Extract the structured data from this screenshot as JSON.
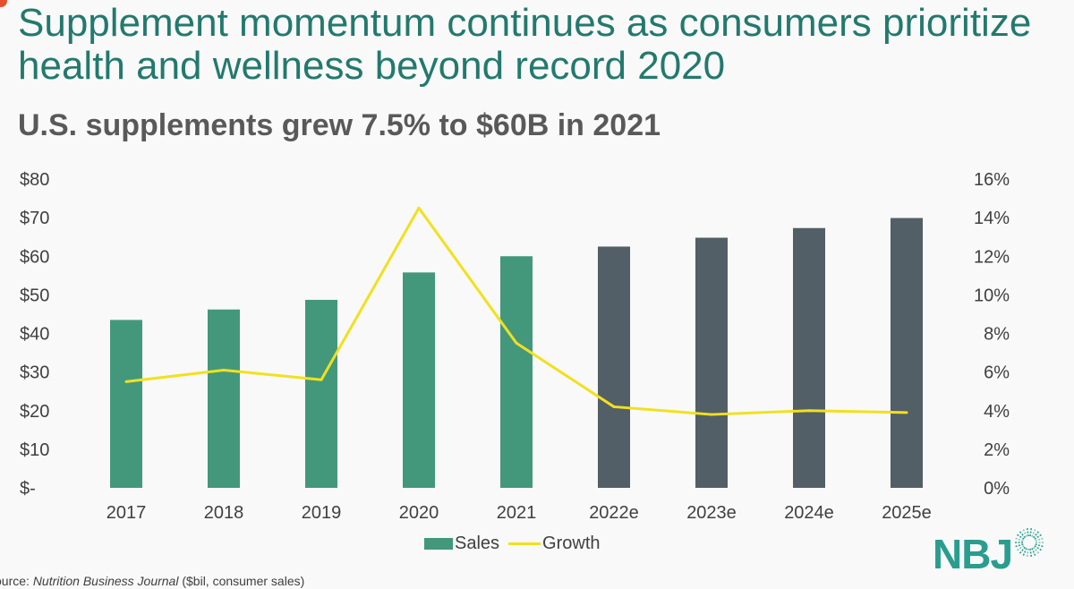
{
  "title": "Supplement momentum continues as consumers prioritize health and wellness beyond record 2020",
  "subtitle": "U.S. supplements grew 7.5% to $60B in 2021",
  "source": {
    "prefix": "ource: ",
    "publication": "Nutrition Business Journal",
    "note": " ($bil, consumer sales)"
  },
  "logo": {
    "text": "NBJ"
  },
  "colors": {
    "title": "#23796e",
    "actual_bar": "#43987c",
    "estimate_bar": "#535f66",
    "growth_line": "#f2e01e"
  },
  "chart_data": {
    "type": "bar",
    "categories": [
      "2017",
      "2018",
      "2019",
      "2020",
      "2021",
      "2022e",
      "2023e",
      "2024e",
      "2025e"
    ],
    "series": [
      {
        "name": "Sales",
        "axis": "left",
        "unit": "$bil",
        "values": [
          43.5,
          46.2,
          48.7,
          55.8,
          60.0,
          62.5,
          64.8,
          67.3,
          69.9
        ],
        "estimate_flags": [
          false,
          false,
          false,
          false,
          false,
          true,
          true,
          true,
          true
        ]
      },
      {
        "name": "Growth",
        "axis": "right",
        "type": "line",
        "unit": "%",
        "values": [
          5.5,
          6.1,
          5.6,
          14.5,
          7.5,
          4.2,
          3.8,
          4.0,
          3.9
        ]
      }
    ],
    "y_left": {
      "ylim": [
        0,
        80
      ],
      "tick_labels": [
        "$-",
        "$10",
        "$20",
        "$30",
        "$40",
        "$50",
        "$60",
        "$70",
        "$80"
      ]
    },
    "y_right": {
      "ylim": [
        0,
        16
      ],
      "tick_labels": [
        "0%",
        "2%",
        "4%",
        "6%",
        "8%",
        "10%",
        "12%",
        "14%",
        "16%"
      ]
    },
    "grid": false,
    "legend": {
      "position": "bottom",
      "items": [
        "Sales",
        "Growth"
      ]
    }
  }
}
